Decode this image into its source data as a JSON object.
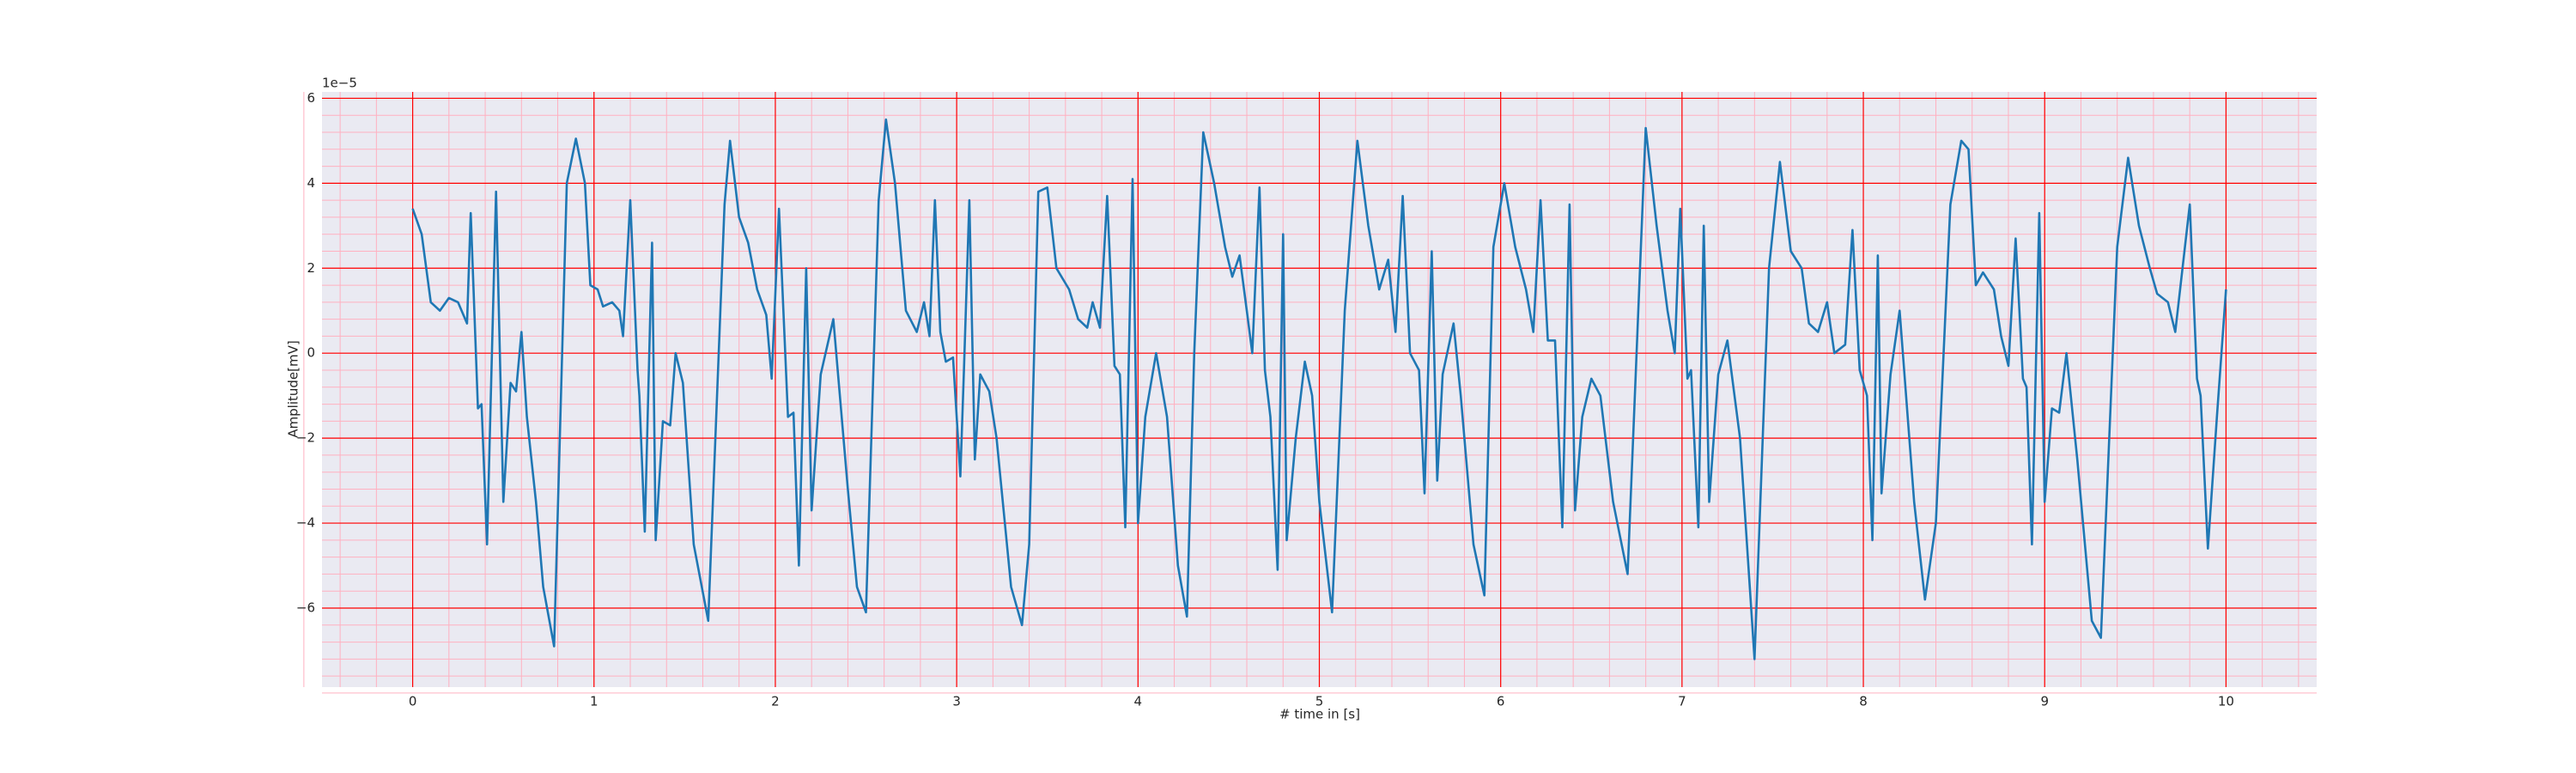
{
  "chart_data": {
    "type": "line",
    "xlabel": "# time in [s]",
    "ylabel": "Amplitude[mV]",
    "y_offset_label": "1e−5",
    "xlim": [
      -0.5,
      10.5
    ],
    "ylim": [
      -7.86,
      6.15
    ],
    "xticks": [
      0,
      1,
      2,
      3,
      4,
      5,
      6,
      7,
      8,
      9,
      10
    ],
    "yticks": [
      {
        "value": -6,
        "label": "−6"
      },
      {
        "value": -4,
        "label": "−4"
      },
      {
        "value": -2,
        "label": "−2"
      },
      0,
      2,
      4,
      6
    ],
    "grid": true,
    "minor_grid": true,
    "grid_color": "#ff0000",
    "minor_grid_color": "#ffb0c0",
    "background": "#eaeaf2",
    "color": "#1f77b4",
    "x": [
      0,
      0.05,
      0.1,
      0.15,
      0.2,
      0.25,
      0.3,
      0.32,
      0.36,
      0.38,
      0.41,
      0.46,
      0.5,
      0.54,
      0.57,
      0.6,
      0.63,
      0.68,
      0.72,
      0.78,
      0.85,
      0.9,
      0.95,
      0.98,
      1.02,
      1.05,
      1.1,
      1.14,
      1.16,
      1.2,
      1.24,
      1.25,
      1.28,
      1.32,
      1.34,
      1.38,
      1.42,
      1.45,
      1.49,
      1.55,
      1.63,
      1.72,
      1.75,
      1.8,
      1.85,
      1.9,
      1.95,
      1.98,
      2.02,
      2.07,
      2.1,
      2.13,
      2.17,
      2.2,
      2.25,
      2.32,
      2.4,
      2.45,
      2.5,
      2.57,
      2.61,
      2.66,
      2.72,
      2.78,
      2.82,
      2.85,
      2.88,
      2.91,
      2.94,
      2.98,
      3.02,
      3.04,
      3.07,
      3.1,
      3.13,
      3.18,
      3.22,
      3.3,
      3.36,
      3.4,
      3.45,
      3.5,
      3.55,
      3.62,
      3.67,
      3.72,
      3.75,
      3.79,
      3.83,
      3.87,
      3.9,
      3.93,
      3.97,
      4.0,
      4.04,
      4.1,
      4.16,
      4.22,
      4.27,
      4.31,
      4.36,
      4.42,
      4.48,
      4.52,
      4.56,
      4.6,
      4.63,
      4.67,
      4.7,
      4.73,
      4.77,
      4.8,
      4.82,
      4.87,
      4.92,
      4.96,
      5.0,
      5.07,
      5.14,
      5.21,
      5.27,
      5.33,
      5.38,
      5.42,
      5.46,
      5.5,
      5.55,
      5.58,
      5.62,
      5.65,
      5.68,
      5.74,
      5.78,
      5.85,
      5.91,
      5.96,
      6.02,
      6.08,
      6.14,
      6.18,
      6.22,
      6.26,
      6.3,
      6.34,
      6.38,
      6.41,
      6.45,
      6.5,
      6.55,
      6.62,
      6.7,
      6.8,
      6.86,
      6.92,
      6.96,
      6.99,
      7.03,
      7.05,
      7.09,
      7.12,
      7.15,
      7.2,
      7.25,
      7.32,
      7.4,
      7.48,
      7.54,
      7.6,
      7.66,
      7.7,
      7.75,
      7.8,
      7.84,
      7.9,
      7.94,
      7.98,
      8.02,
      8.05,
      8.08,
      8.1,
      8.15,
      8.2,
      8.28,
      8.34,
      8.4,
      8.48,
      8.54,
      8.58,
      8.62,
      8.66,
      8.72,
      8.76,
      8.8,
      8.84,
      8.88,
      8.9,
      8.93,
      8.97,
      9.0,
      9.04,
      9.08,
      9.12,
      9.18,
      9.26,
      9.31,
      9.4,
      9.46,
      9.52,
      9.58,
      9.62,
      9.68,
      9.72,
      9.8,
      9.84,
      9.86,
      9.9,
      9.95,
      10.0
    ],
    "values": [
      3.4,
      2.8,
      1.2,
      1.0,
      1.3,
      1.2,
      0.7,
      3.3,
      -1.3,
      -1.2,
      -4.5,
      3.8,
      -3.5,
      -0.7,
      -0.9,
      0.5,
      -1.5,
      -3.5,
      -5.5,
      -6.9,
      4.0,
      5.05,
      4.0,
      1.6,
      1.5,
      1.1,
      1.2,
      1.0,
      0.4,
      3.6,
      -0.4,
      -1.0,
      -4.2,
      2.6,
      -4.4,
      -1.6,
      -1.7,
      0.0,
      -0.7,
      -4.5,
      -6.3,
      3.5,
      5.0,
      3.2,
      2.6,
      1.5,
      0.9,
      -0.6,
      3.4,
      -1.5,
      -1.4,
      -5.0,
      2.0,
      -3.7,
      -0.5,
      0.8,
      -3.2,
      -5.5,
      -6.1,
      3.6,
      5.5,
      4.0,
      1.0,
      0.5,
      1.2,
      0.4,
      3.6,
      0.5,
      -0.2,
      -0.1,
      -2.9,
      -0.4,
      3.6,
      -2.5,
      -0.5,
      -0.9,
      -2.0,
      -5.5,
      -6.4,
      -4.5,
      3.8,
      3.9,
      2.0,
      1.5,
      0.8,
      0.6,
      1.2,
      0.6,
      3.7,
      -0.3,
      -0.5,
      -4.1,
      4.1,
      -4.0,
      -1.5,
      0.0,
      -1.5,
      -5.0,
      -6.2,
      0.0,
      5.2,
      4.0,
      2.5,
      1.8,
      2.3,
      1.0,
      0.0,
      3.9,
      -0.4,
      -1.5,
      -5.1,
      2.8,
      -4.4,
      -2.0,
      -0.2,
      -1.0,
      -3.5,
      -6.1,
      1.0,
      5.0,
      3.0,
      1.5,
      2.2,
      0.5,
      3.7,
      0.0,
      -0.4,
      -3.3,
      2.4,
      -3.0,
      -0.5,
      0.7,
      -1.0,
      -4.5,
      -5.7,
      2.5,
      4.0,
      2.5,
      1.5,
      0.5,
      3.6,
      0.3,
      0.3,
      -4.1,
      3.5,
      -3.7,
      -1.5,
      -0.6,
      -1.0,
      -3.5,
      -5.2,
      5.3,
      3.0,
      1.0,
      0.0,
      3.4,
      -0.6,
      -0.4,
      -4.1,
      3.0,
      -3.5,
      -0.5,
      0.3,
      -2.0,
      -7.2,
      2.0,
      4.5,
      2.4,
      2.0,
      0.7,
      0.5,
      1.2,
      0.0,
      0.2,
      2.9,
      -0.4,
      -1.0,
      -4.4,
      2.3,
      -3.3,
      -0.5,
      1.0,
      -3.5,
      -5.8,
      -4.0,
      3.5,
      5.0,
      4.8,
      1.6,
      1.9,
      1.5,
      0.4,
      -0.3,
      2.7,
      -0.6,
      -0.8,
      -4.5,
      3.3,
      -3.5,
      -1.3,
      -1.4,
      0.0,
      -2.5,
      -6.3,
      -6.7,
      2.5,
      4.6,
      3.0,
      2.0,
      1.4,
      1.2,
      0.5,
      3.5,
      -0.6,
      -1.0,
      -4.6,
      -1.5,
      1.5
    ]
  }
}
